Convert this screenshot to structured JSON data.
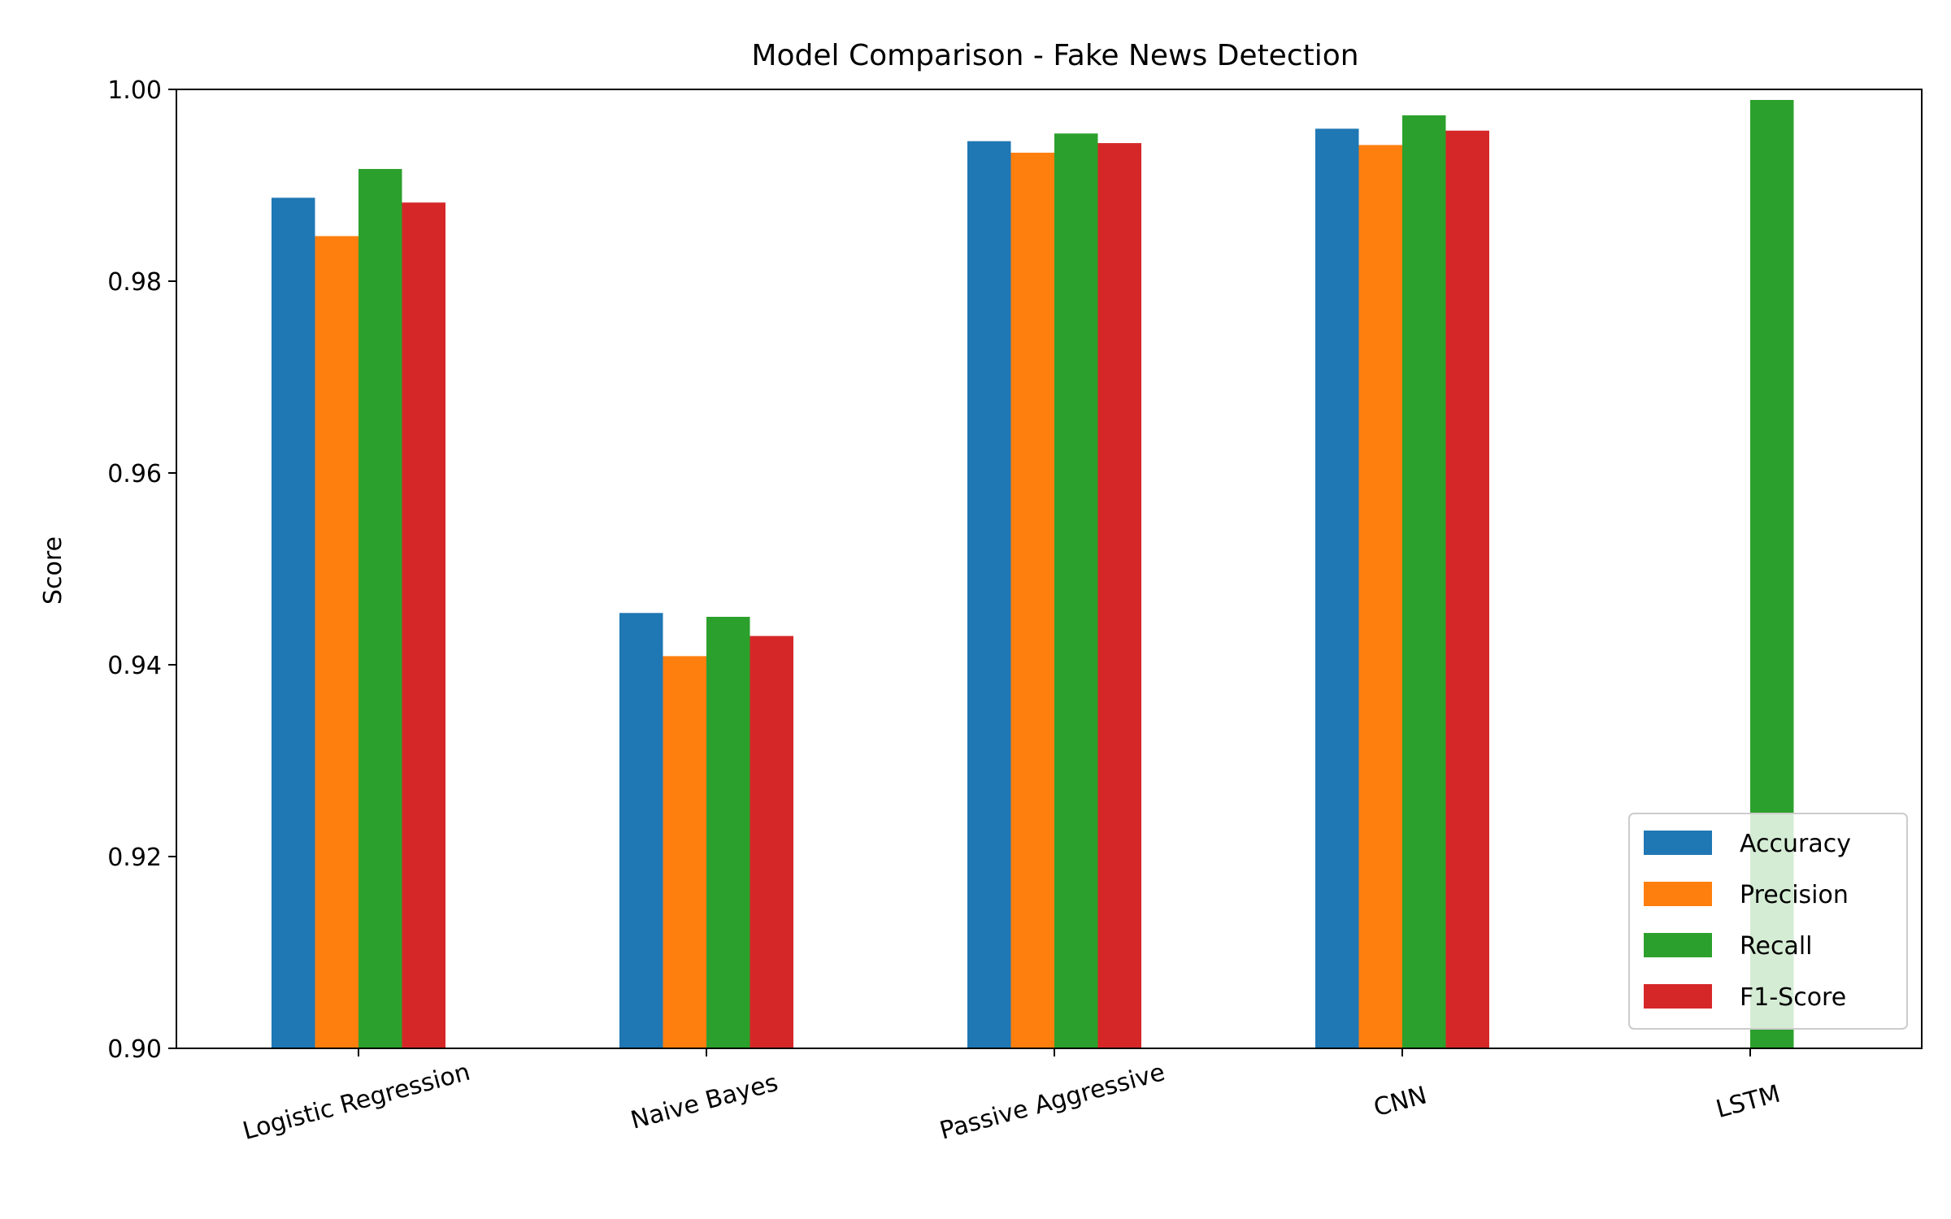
{
  "chart_data": {
    "type": "bar",
    "title": "Model Comparison - Fake News Detection",
    "xlabel": "",
    "ylabel": "Score",
    "ylim": [
      0.9,
      1.0
    ],
    "yticks": [
      "0.90",
      "0.92",
      "0.94",
      "0.96",
      "0.98",
      "1.00"
    ],
    "categories": [
      "Logistic Regression",
      "Naive Bayes",
      "Passive Aggressive",
      "CNN",
      "LSTM"
    ],
    "series": [
      {
        "name": "Accuracy",
        "color": "#1f77b4",
        "values": [
          0.9887,
          0.9454,
          0.9946,
          0.9959,
          null
        ]
      },
      {
        "name": "Precision",
        "color": "#ff7f0e",
        "values": [
          0.9847,
          0.9409,
          0.9934,
          0.9942,
          null
        ]
      },
      {
        "name": "Recall",
        "color": "#2ca02c",
        "values": [
          0.9917,
          0.945,
          0.9954,
          0.9973,
          0.9989
        ]
      },
      {
        "name": "F1-Score",
        "color": "#d62728",
        "values": [
          0.9882,
          0.943,
          0.9944,
          0.9957,
          null
        ]
      }
    ],
    "grid": false,
    "legend_position": "lower-right"
  }
}
